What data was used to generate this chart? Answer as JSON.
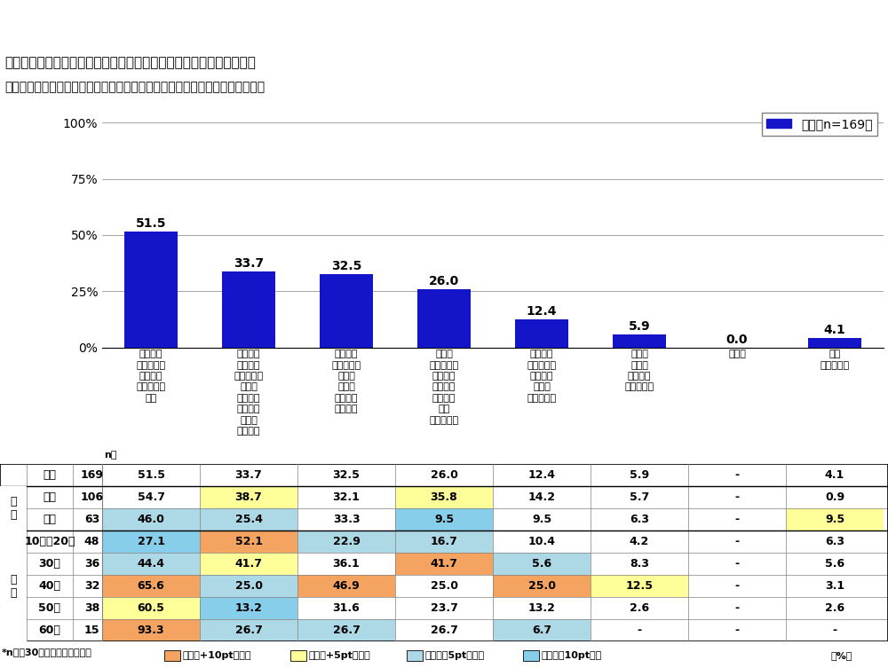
{
  "title_line1": "価格よりも温室効果ガス削減効果を重視する理由　［複数回答形式］",
  "title_line2": "対象：商品を購入するときに、価格よりも温室効果ガス削減効果を重視する人",
  "bar_labels": [
    "温室効果\nガス削減が\n重要だと\n思っている\nから",
    "温室効果\nガス削減\n効果のある\n商品に\n補助金や\n税制優遇\n制度が\nあるから",
    "温室効果\nガス削減は\n商品の\n価値の\n一つだと\n思うから",
    "節電や\nランニング\nコストの\n観点で、\n最終的に\n元が\n取れるから",
    "温室効果\nガス削減に\n貢献する\n実感が\n持てるから",
    "価格を\nあまり\n重視して\nいないから",
    "その他",
    "特に\n理由はない"
  ],
  "bar_values": [
    51.5,
    33.7,
    32.5,
    26.0,
    12.4,
    5.9,
    0.0,
    4.1
  ],
  "bar_color": "#1414c8",
  "legend_label": "全体［n=169］",
  "legend_color": "#1414c8",
  "ytick_values": [
    0,
    25,
    50,
    75,
    100
  ],
  "ylabel_ticks": [
    "0%",
    "25%",
    "50%",
    "75%",
    "100%"
  ],
  "ylim": [
    0,
    100
  ],
  "table_row_labels_col1": [
    "全体",
    "男性",
    "女性",
    "10代・20代",
    "30代",
    "40代",
    "50代",
    "60代"
  ],
  "table_n": [
    169,
    106,
    63,
    48,
    36,
    32,
    38,
    15
  ],
  "table_data": [
    [
      51.5,
      33.7,
      32.5,
      26.0,
      12.4,
      5.9,
      "-",
      4.1
    ],
    [
      54.7,
      38.7,
      32.1,
      35.8,
      14.2,
      5.7,
      "-",
      0.9
    ],
    [
      46.0,
      25.4,
      33.3,
      9.5,
      9.5,
      6.3,
      "-",
      9.5
    ],
    [
      27.1,
      52.1,
      22.9,
      16.7,
      10.4,
      4.2,
      "-",
      6.3
    ],
    [
      44.4,
      41.7,
      36.1,
      41.7,
      5.6,
      8.3,
      "-",
      5.6
    ],
    [
      65.6,
      25.0,
      46.9,
      25.0,
      25.0,
      12.5,
      "-",
      3.1
    ],
    [
      60.5,
      13.2,
      31.6,
      23.7,
      13.2,
      2.6,
      "-",
      2.6
    ],
    [
      93.3,
      26.7,
      26.7,
      26.7,
      6.7,
      "-",
      "-",
      "-"
    ]
  ],
  "highlight_plus10": "#f4a460",
  "highlight_plus5": "#ffff99",
  "highlight_minus5": "#add8e6",
  "highlight_minus10": "#87ceeb",
  "note_text": "*n数が30未満の属性は参考値",
  "pct_label": "（%）"
}
